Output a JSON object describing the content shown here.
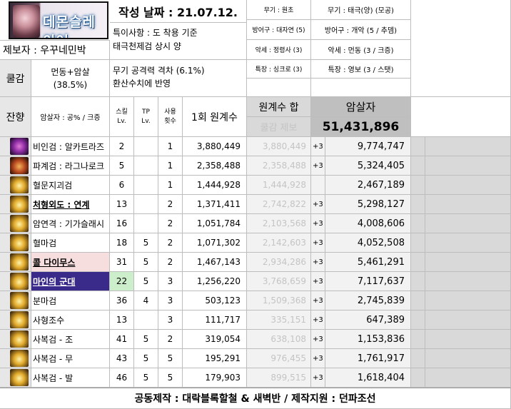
{
  "header": {
    "logo_text": "데몬슬레이어",
    "author_label": "제보자 : 우꾸네민박",
    "date_label": "작성 날짜 : 21.07.12.",
    "note_line1": "특이사항 : 도 착용 기준",
    "note_line2": "태극천제검 상시 양",
    "note_line3": "무기 공격력 격차 (6.1%)",
    "note_line4": "환산수치에 반영",
    "coolreduce_label": "쿨감",
    "coolreduce_value1": "먼동+암살",
    "coolreduce_value2": "(38.5%)",
    "gear_left": [
      {
        "key": "무기 : 원초"
      },
      {
        "key": "방어구 : 대자연 (5)"
      },
      {
        "key": "악세 : 정령사 (3)"
      },
      {
        "key": "특장 : 싱크로 (3)"
      }
    ],
    "gear_right": [
      {
        "key": "무기 : 태극(양) (모공)"
      },
      {
        "key": "방어구 : 개악 (5 / 추뎀)"
      },
      {
        "key": "악세 : 먼동 (3 / 크증)"
      },
      {
        "key": "특장 : 영보 (3 / 스탯)"
      }
    ]
  },
  "table": {
    "side_label": "잔향",
    "col_skill": "암살자 : 공% / 크증",
    "col_sklv": "스킬\nLv.",
    "col_tplv": "TP\nLv.",
    "col_uses": "사용\n횟수",
    "col_hit": "1회 원계수",
    "col_sum": "원계수 합",
    "col_coolnote": "쿨감 제보",
    "col_assassin": "암살자",
    "total": "51,431,896",
    "rows": [
      {
        "name": "비인검 : 알카트라즈",
        "lv": "2",
        "tp": "",
        "uses": "1",
        "hit": "3,880,449",
        "sum": "3,880,449",
        "plus": "+3",
        "val": "9,774,747",
        "icon": "v",
        "bold": false,
        "hl": ""
      },
      {
        "name": "파계검 : 라그나로크",
        "lv": "5",
        "tp": "",
        "uses": "1",
        "hit": "2,358,488",
        "sum": "2,358,488",
        "plus": "+3",
        "val": "5,324,405",
        "icon": "r",
        "bold": false,
        "hl": ""
      },
      {
        "name": "혈문지괴검",
        "lv": "6",
        "tp": "",
        "uses": "1",
        "hit": "1,444,928",
        "sum": "1,444,928",
        "plus": "",
        "val": "2,467,189",
        "icon": "g",
        "bold": false,
        "hl": ""
      },
      {
        "name": "처형외도 : 연계",
        "lv": "13",
        "tp": "",
        "uses": "2",
        "hit": "1,371,411",
        "sum": "2,742,822",
        "plus": "+3",
        "val": "5,298,127",
        "icon": "g",
        "bold": true,
        "hl": ""
      },
      {
        "name": "암연격 : 기가슬래시",
        "lv": "16",
        "tp": "",
        "uses": "2",
        "hit": "1,051,784",
        "sum": "2,103,568",
        "plus": "+3",
        "val": "4,008,606",
        "icon": "g",
        "bold": false,
        "hl": ""
      },
      {
        "name": "혈마검",
        "lv": "18",
        "tp": "5",
        "uses": "2",
        "hit": "1,071,302",
        "sum": "2,142,603",
        "plus": "+3",
        "val": "4,052,508",
        "icon": "g",
        "bold": false,
        "hl": ""
      },
      {
        "name": "콜 다이무스",
        "lv": "31",
        "tp": "5",
        "uses": "2",
        "hit": "1,467,143",
        "sum": "2,934,286",
        "plus": "+3",
        "val": "5,461,291",
        "icon": "g",
        "bold": true,
        "hl": "pink"
      },
      {
        "name": "마인의 군대",
        "lv": "22",
        "tp": "5",
        "uses": "3",
        "hit": "1,256,220",
        "sum": "3,768,659",
        "plus": "+3",
        "val": "7,117,637",
        "icon": "g",
        "bold": true,
        "hl": "purple"
      },
      {
        "name": "분마검",
        "lv": "36",
        "tp": "4",
        "uses": "3",
        "hit": "503,123",
        "sum": "1,509,368",
        "plus": "+3",
        "val": "2,745,839",
        "icon": "g",
        "bold": false,
        "hl": ""
      },
      {
        "name": "사형조수",
        "lv": "13",
        "tp": "",
        "uses": "3",
        "hit": "111,717",
        "sum": "335,151",
        "plus": "+3",
        "val": "647,389",
        "icon": "g",
        "bold": false,
        "hl": ""
      },
      {
        "name": "사복검 - 조",
        "lv": "41",
        "tp": "5",
        "uses": "2",
        "hit": "319,054",
        "sum": "638,108",
        "plus": "+3",
        "val": "1,153,836",
        "icon": "g",
        "bold": false,
        "hl": ""
      },
      {
        "name": "사복검 - 무",
        "lv": "43",
        "tp": "5",
        "uses": "5",
        "hit": "195,291",
        "sum": "976,455",
        "plus": "+3",
        "val": "1,761,917",
        "icon": "g",
        "bold": false,
        "hl": ""
      },
      {
        "name": "사복검 - 발",
        "lv": "46",
        "tp": "5",
        "uses": "5",
        "hit": "179,903",
        "sum": "899,515",
        "plus": "+3",
        "val": "1,618,404",
        "icon": "g",
        "bold": false,
        "hl": ""
      }
    ]
  },
  "footer": {
    "credit": "공동제작 : 대락블록할철 & 새벽반 / 제작지원 : 던파조선"
  },
  "colors": {
    "pink_highlight": "#f6dede",
    "purple_highlight": "#3a2a8a",
    "green_cell": "#cdeecb",
    "header_gray": "#d9d9d9"
  }
}
